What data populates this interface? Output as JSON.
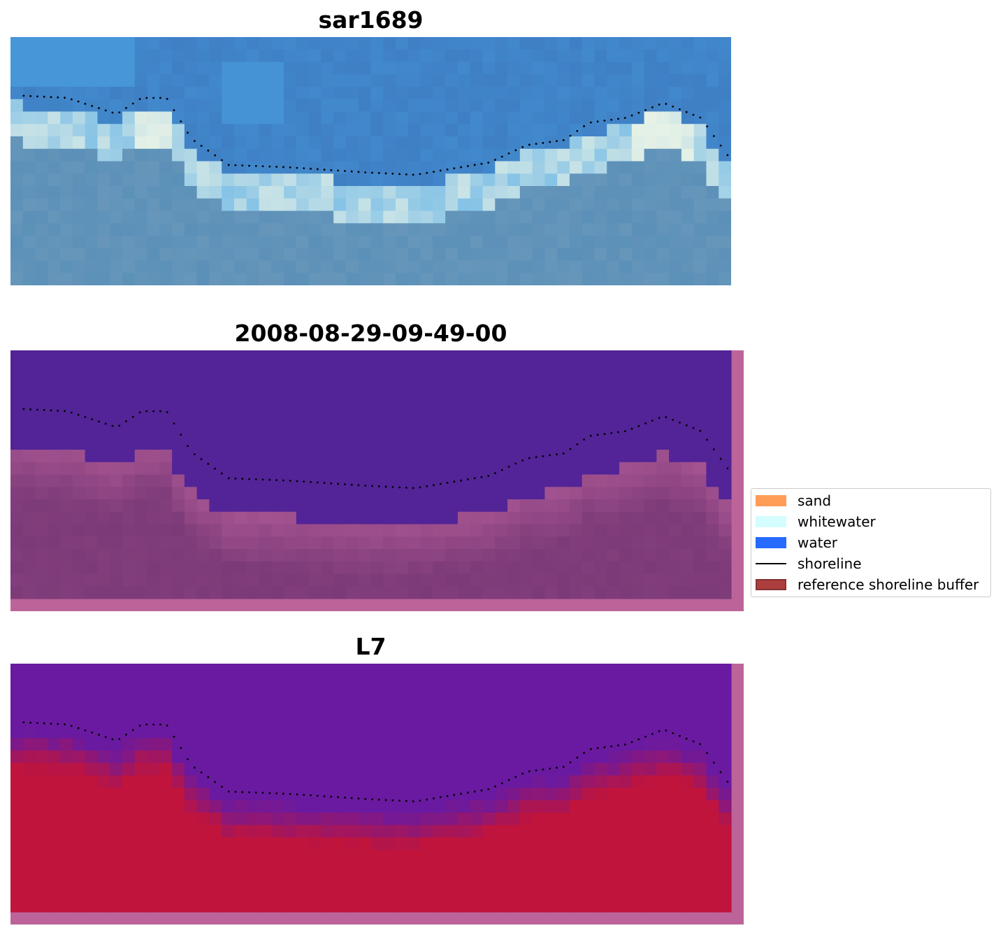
{
  "panels": [
    {
      "title": "sar1689",
      "kind": "rgb"
    },
    {
      "title": "2008-08-29-09-49-00",
      "kind": "classified"
    },
    {
      "title": "L7",
      "kind": "index"
    }
  ],
  "legend": {
    "items": [
      {
        "label": "sand",
        "color": "#ff8c3a",
        "type": "patch"
      },
      {
        "label": "whitewater",
        "color": "#ccfdff",
        "type": "patch"
      },
      {
        "label": "water",
        "color": "#0050ff",
        "type": "patch"
      },
      {
        "label": "shoreline",
        "color": "#000000",
        "type": "line"
      },
      {
        "label": "reference shoreline buffer",
        "color": "#a52a2a",
        "type": "patch"
      }
    ]
  },
  "colors": {
    "buffer_overlay": "#bc649a",
    "classified_water": "#522497",
    "classified_land": "#7c3a78",
    "index_low": "#6a1aa0",
    "index_high": "#c0143c",
    "rgb_sea": "#3f7fc4",
    "rgb_light": "#4aa6e6",
    "rgb_foam": "#f4f8e6",
    "rgb_land": "#5b90b8"
  }
}
